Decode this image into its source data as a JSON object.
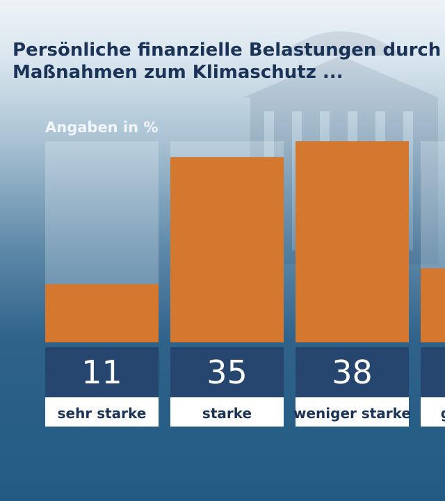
{
  "chart_data": {
    "type": "bar",
    "title": "Persönliche finanzielle Belastungen durch\nMaßnahmen zum Klimaschutz ...",
    "subtitle": "Angaben in %",
    "categories": [
      "sehr starke",
      "starke",
      "weniger starke",
      "gar keine"
    ],
    "values": [
      11,
      35,
      38,
      14
    ],
    "ylim": [
      0,
      38
    ],
    "grid": false,
    "bar_color": "#d5782f",
    "value_box_color": "#264670",
    "label_box_color": "#ffffff",
    "title_color": "#1a3356"
  }
}
